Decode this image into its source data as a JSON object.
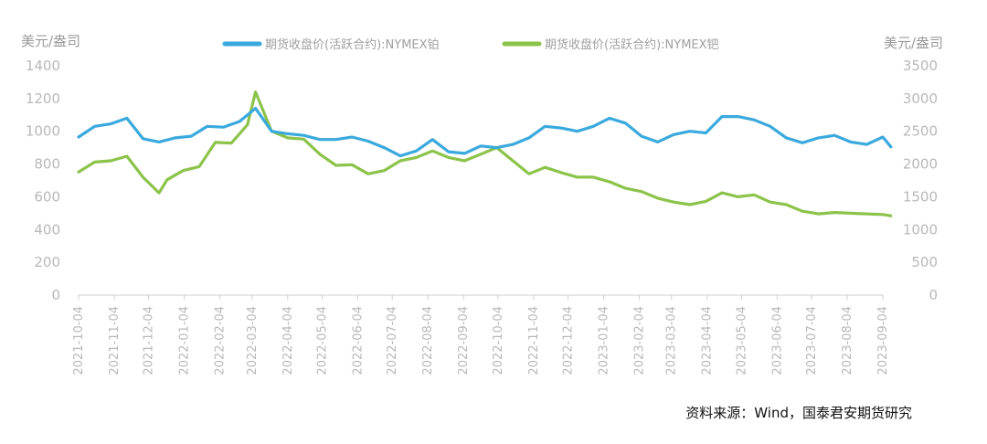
{
  "chart_data": {
    "type": "line",
    "left_unit": "美元/盎司",
    "right_unit": "美元/盎司",
    "source": "资料来源：Wind，国泰君安期货研究",
    "y_left": {
      "min": 0,
      "max": 1400,
      "ticks": [
        "0",
        "200",
        "400",
        "600",
        "800",
        "1000",
        "1200",
        "1400"
      ]
    },
    "y_right": {
      "min": 0,
      "max": 3500,
      "ticks": [
        "0",
        "500",
        "1000",
        "1500",
        "2000",
        "2500",
        "3000",
        "3500"
      ]
    },
    "x_ticks": [
      "2021-10-04",
      "2021-11-04",
      "2021-12-04",
      "2022-01-04",
      "2022-02-04",
      "2022-03-04",
      "2022-04-04",
      "2022-05-04",
      "2022-06-04",
      "2022-07-04",
      "2022-08-04",
      "2022-09-04",
      "2022-10-04",
      "2022-11-04",
      "2022-12-04",
      "2023-01-04",
      "2023-02-04",
      "2023-03-04",
      "2023-04-04",
      "2023-05-04",
      "2023-06-04",
      "2023-07-04",
      "2023-08-04",
      "2023-09-04"
    ],
    "colors": {
      "platinum": "#3aa9dd",
      "palladium": "#8cc34a",
      "axis": "#cfcfcf"
    },
    "series": [
      {
        "name": "期货收盘价(活跃合约):NYMEX铂",
        "axis": "left",
        "points": [
          [
            "2021-10-04",
            965
          ],
          [
            "2021-10-18",
            1030
          ],
          [
            "2021-11-01",
            1045
          ],
          [
            "2021-11-15",
            1080
          ],
          [
            "2021-11-29",
            955
          ],
          [
            "2021-12-13",
            935
          ],
          [
            "2021-12-27",
            960
          ],
          [
            "2022-01-10",
            970
          ],
          [
            "2022-01-24",
            1030
          ],
          [
            "2022-02-07",
            1025
          ],
          [
            "2022-02-21",
            1060
          ],
          [
            "2022-03-07",
            1140
          ],
          [
            "2022-03-21",
            1000
          ],
          [
            "2022-04-04",
            985
          ],
          [
            "2022-04-18",
            975
          ],
          [
            "2022-05-02",
            950
          ],
          [
            "2022-05-16",
            950
          ],
          [
            "2022-05-30",
            965
          ],
          [
            "2022-06-13",
            940
          ],
          [
            "2022-06-27",
            900
          ],
          [
            "2022-07-11",
            850
          ],
          [
            "2022-07-25",
            880
          ],
          [
            "2022-08-08",
            950
          ],
          [
            "2022-08-22",
            875
          ],
          [
            "2022-09-05",
            865
          ],
          [
            "2022-09-19",
            910
          ],
          [
            "2022-10-03",
            900
          ],
          [
            "2022-10-17",
            920
          ],
          [
            "2022-10-31",
            960
          ],
          [
            "2022-11-14",
            1030
          ],
          [
            "2022-11-28",
            1020
          ],
          [
            "2022-12-12",
            1000
          ],
          [
            "2022-12-26",
            1030
          ],
          [
            "2023-01-09",
            1080
          ],
          [
            "2023-01-23",
            1050
          ],
          [
            "2023-02-06",
            970
          ],
          [
            "2023-02-20",
            935
          ],
          [
            "2023-03-06",
            980
          ],
          [
            "2023-03-20",
            1000
          ],
          [
            "2023-04-03",
            990
          ],
          [
            "2023-04-17",
            1090
          ],
          [
            "2023-05-01",
            1090
          ],
          [
            "2023-05-15",
            1070
          ],
          [
            "2023-05-29",
            1030
          ],
          [
            "2023-06-12",
            960
          ],
          [
            "2023-06-26",
            930
          ],
          [
            "2023-07-10",
            960
          ],
          [
            "2023-07-24",
            975
          ],
          [
            "2023-08-07",
            935
          ],
          [
            "2023-08-21",
            920
          ],
          [
            "2023-09-04",
            965
          ],
          [
            "2023-09-11",
            905
          ]
        ]
      },
      {
        "name": "期货收盘价(活跃合约):NYMEX钯",
        "axis": "right",
        "points": [
          [
            "2021-10-04",
            1880
          ],
          [
            "2021-10-18",
            2030
          ],
          [
            "2021-11-01",
            2050
          ],
          [
            "2021-11-15",
            2120
          ],
          [
            "2021-11-29",
            1800
          ],
          [
            "2021-12-13",
            1560
          ],
          [
            "2021-12-20",
            1760
          ],
          [
            "2022-01-03",
            1900
          ],
          [
            "2022-01-17",
            1960
          ],
          [
            "2022-01-31",
            2330
          ],
          [
            "2022-02-14",
            2320
          ],
          [
            "2022-02-28",
            2600
          ],
          [
            "2022-03-07",
            3100
          ],
          [
            "2022-03-21",
            2500
          ],
          [
            "2022-04-04",
            2400
          ],
          [
            "2022-04-18",
            2380
          ],
          [
            "2022-05-02",
            2150
          ],
          [
            "2022-05-16",
            1980
          ],
          [
            "2022-05-30",
            1990
          ],
          [
            "2022-06-13",
            1850
          ],
          [
            "2022-06-27",
            1900
          ],
          [
            "2022-07-11",
            2050
          ],
          [
            "2022-07-25",
            2100
          ],
          [
            "2022-08-08",
            2200
          ],
          [
            "2022-08-22",
            2100
          ],
          [
            "2022-09-05",
            2050
          ],
          [
            "2022-09-19",
            2150
          ],
          [
            "2022-10-03",
            2250
          ],
          [
            "2022-10-17",
            2050
          ],
          [
            "2022-10-31",
            1850
          ],
          [
            "2022-11-14",
            1950
          ],
          [
            "2022-11-28",
            1870
          ],
          [
            "2022-12-12",
            1800
          ],
          [
            "2022-12-26",
            1800
          ],
          [
            "2023-01-09",
            1730
          ],
          [
            "2023-01-23",
            1630
          ],
          [
            "2023-02-06",
            1580
          ],
          [
            "2023-02-20",
            1480
          ],
          [
            "2023-03-06",
            1420
          ],
          [
            "2023-03-20",
            1380
          ],
          [
            "2023-04-03",
            1430
          ],
          [
            "2023-04-17",
            1560
          ],
          [
            "2023-05-01",
            1500
          ],
          [
            "2023-05-15",
            1530
          ],
          [
            "2023-05-29",
            1420
          ],
          [
            "2023-06-12",
            1380
          ],
          [
            "2023-06-26",
            1280
          ],
          [
            "2023-07-10",
            1240
          ],
          [
            "2023-07-24",
            1260
          ],
          [
            "2023-08-07",
            1250
          ],
          [
            "2023-08-21",
            1240
          ],
          [
            "2023-09-04",
            1230
          ],
          [
            "2023-09-11",
            1210
          ]
        ]
      }
    ]
  }
}
